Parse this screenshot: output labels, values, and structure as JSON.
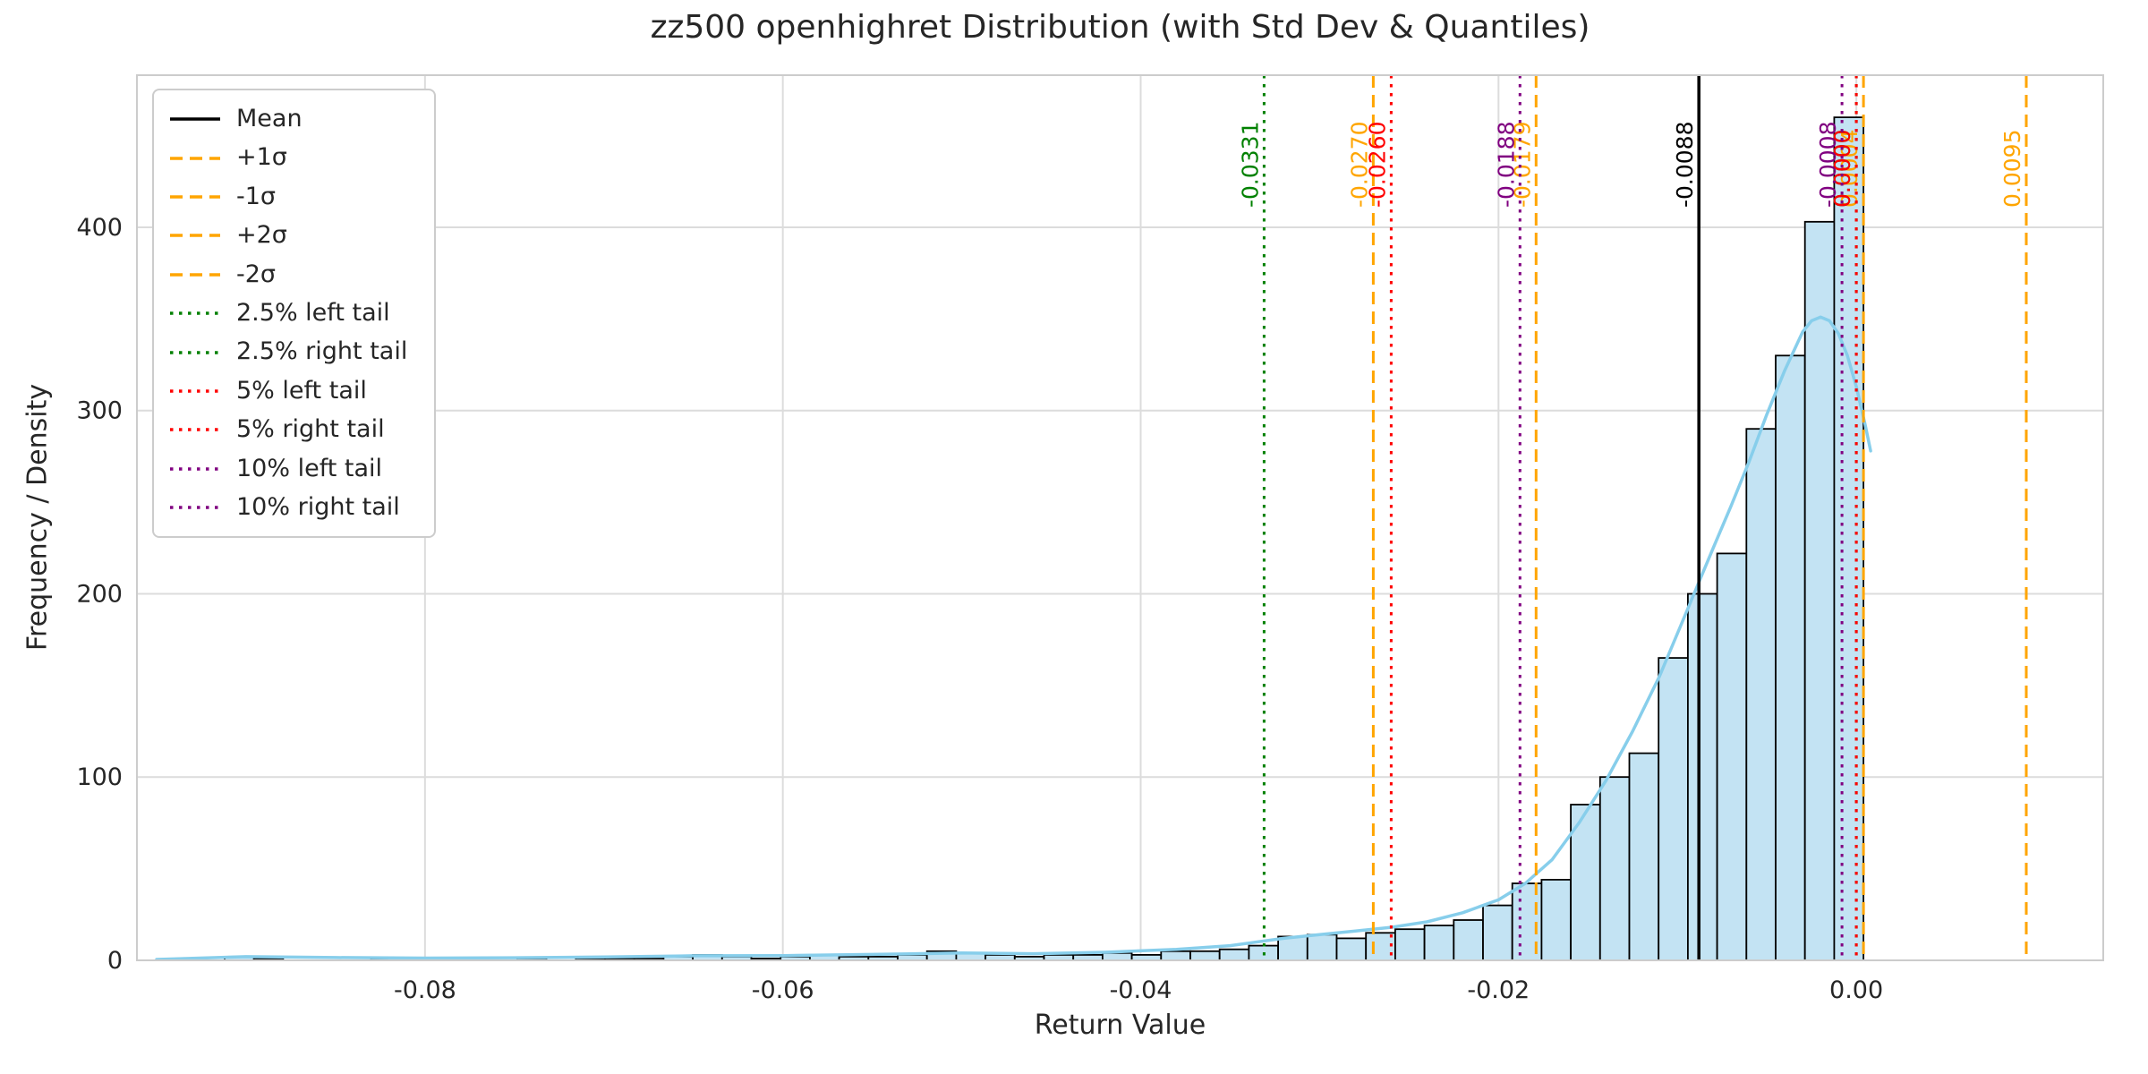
{
  "figure": {
    "title": "zz500 openhighret Distribution (with Std Dev & Quantiles)",
    "xlabel": "Return Value",
    "ylabel": "Frequency / Density"
  },
  "chart_data": {
    "type": "bar",
    "subtype": "histogram-with-kde-and-vlines",
    "title": "zz500 openhighret Distribution (with Std Dev & Quantiles)",
    "xlabel": "Return Value",
    "ylabel": "Frequency / Density",
    "xlim": [
      -0.0961,
      0.0138
    ],
    "ylim": [
      0,
      483
    ],
    "grid": true,
    "legend_position": "upper left",
    "x_ticks": {
      "values": [
        -0.08,
        -0.06,
        -0.04,
        -0.02,
        0.0
      ],
      "labels": [
        "-0.08",
        "-0.06",
        "-0.04",
        "-0.02",
        "0.00"
      ]
    },
    "y_ticks": {
      "values": [
        0,
        100,
        200,
        300,
        400
      ],
      "labels": [
        "0",
        "100",
        "200",
        "300",
        "400"
      ]
    },
    "histogram": {
      "bin_start": -0.0912,
      "bin_width": 0.0016357,
      "counts": [
        2,
        1,
        0,
        0,
        0,
        1,
        0,
        0,
        1,
        0,
        1,
        0,
        1,
        1,
        1,
        2,
        3,
        2,
        1,
        2,
        3,
        2,
        2,
        3,
        5,
        4,
        3,
        2,
        3,
        3,
        4,
        3,
        5,
        5,
        6,
        8,
        13,
        14,
        12,
        15,
        17,
        19,
        22,
        30,
        42,
        44,
        85,
        100,
        113,
        165,
        200,
        222,
        290,
        330,
        403,
        460
      ]
    },
    "kde": {
      "x": [
        -0.095,
        -0.09,
        -0.085,
        -0.08,
        -0.075,
        -0.07,
        -0.065,
        -0.06,
        -0.055,
        -0.05,
        -0.046,
        -0.042,
        -0.038,
        -0.035,
        -0.032,
        -0.03,
        -0.028,
        -0.026,
        -0.024,
        -0.022,
        -0.02,
        -0.0185,
        -0.017,
        -0.0155,
        -0.014,
        -0.0125,
        -0.011,
        -0.0095,
        -0.008,
        -0.007,
        -0.006,
        -0.005,
        -0.004,
        -0.003,
        -0.0025,
        -0.002,
        -0.0015,
        -0.001,
        -0.0005,
        0.0,
        0.0005,
        0.0008
      ],
      "y": [
        0.5,
        2,
        1.5,
        1.2,
        1.4,
        1.8,
        2.5,
        2.6,
        3.2,
        4,
        3.6,
        4.4,
        6,
        8,
        12,
        14,
        16,
        18,
        21,
        26,
        33,
        42,
        55,
        75,
        98,
        125,
        155,
        190,
        225,
        248,
        272,
        298,
        322,
        343,
        349,
        351,
        349,
        342,
        330,
        313,
        292,
        278
      ]
    },
    "vlines": [
      {
        "name": "Mean",
        "x": -0.0088,
        "label": "-0.0088",
        "color": "#000000",
        "style": "solid"
      },
      {
        "name": "+1σ",
        "x": 0.0004,
        "label": "0.0004",
        "color": "#FFA500",
        "style": "dashed"
      },
      {
        "name": "-1σ",
        "x": -0.0179,
        "label": "-0.0179",
        "color": "#FFA500",
        "style": "dashed"
      },
      {
        "name": "+2σ",
        "x": 0.0095,
        "label": "0.0095",
        "color": "#FFA500",
        "style": "dashed"
      },
      {
        "name": "-2σ",
        "x": -0.027,
        "label": "-0.0270",
        "color": "#FFA500",
        "style": "dashed"
      },
      {
        "name": "2.5% left tail",
        "x": -0.0331,
        "label": "-0.0331",
        "color": "#008000",
        "style": "dotted"
      },
      {
        "name": "2.5% right tail",
        "x": 0.0,
        "label": "0.0000",
        "color": "#008000",
        "style": "dotted"
      },
      {
        "name": "5% left tail",
        "x": -0.026,
        "label": "-0.0260",
        "color": "#FF0000",
        "style": "dotted"
      },
      {
        "name": "5% right tail",
        "x": 0.0,
        "label": "0.0000",
        "color": "#FF0000",
        "style": "dotted"
      },
      {
        "name": "10% left tail",
        "x": -0.0188,
        "label": "-0.0188",
        "color": "#800080",
        "style": "dotted"
      },
      {
        "name": "10% right tail",
        "x": -0.0008,
        "label": "-0.0008",
        "color": "#800080",
        "style": "dotted"
      }
    ],
    "legend": [
      {
        "label": "Mean",
        "color": "#000000",
        "style": "solid"
      },
      {
        "label": "+1σ",
        "color": "#FFA500",
        "style": "dashed"
      },
      {
        "label": "-1σ",
        "color": "#FFA500",
        "style": "dashed"
      },
      {
        "label": "+2σ",
        "color": "#FFA500",
        "style": "dashed"
      },
      {
        "label": "-2σ",
        "color": "#FFA500",
        "style": "dashed"
      },
      {
        "label": "2.5% left tail",
        "color": "#008000",
        "style": "dotted"
      },
      {
        "label": "2.5% right tail",
        "color": "#008000",
        "style": "dotted"
      },
      {
        "label": "5% left tail",
        "color": "#FF0000",
        "style": "dotted"
      },
      {
        "label": "5% right tail",
        "color": "#FF0000",
        "style": "dotted"
      },
      {
        "label": "10% left tail",
        "color": "#800080",
        "style": "dotted"
      },
      {
        "label": "10% right tail",
        "color": "#800080",
        "style": "dotted"
      }
    ],
    "colors": {
      "hist_fill": "#c3e3f3",
      "hist_edge": "#000000",
      "kde": "#87CEEB",
      "grid": "#dcdcdc",
      "spine": "#cccccc",
      "text": "#262626",
      "sigma": "#FFA500",
      "tail_2_5": "#008000",
      "tail_5": "#FF0000",
      "tail_10": "#800080",
      "mean": "#000000"
    }
  }
}
